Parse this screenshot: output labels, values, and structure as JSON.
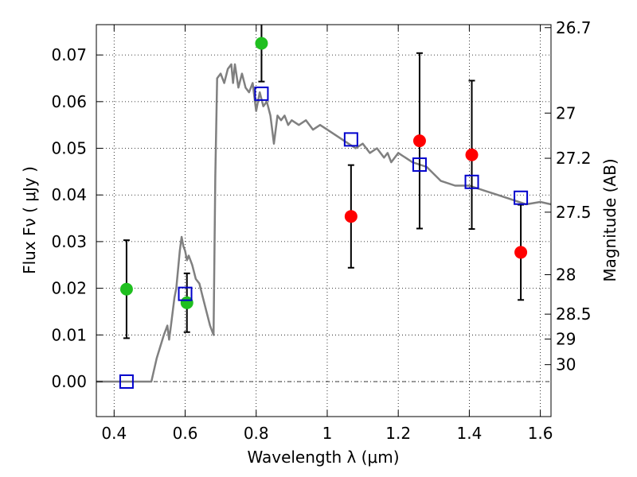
{
  "chart_data": {
    "type": "scatter",
    "xlabel": "Wavelength  λ (μm)",
    "ylabel": "Flux  Fν  ( μJy )",
    "ylabel_right": "Magnitude (AB)",
    "xlim": [
      0.35,
      1.63
    ],
    "ylim": [
      -0.0075,
      0.0765
    ],
    "x_ticks": [
      0.4,
      0.6,
      0.8,
      1.0,
      1.2,
      1.4,
      1.6
    ],
    "x_tick_labels": [
      "0.4",
      "0.6",
      "0.8",
      "1",
      "1.2",
      "1.4",
      "1.6"
    ],
    "y_ticks": [
      0.0,
      0.01,
      0.02,
      0.03,
      0.04,
      0.05,
      0.06,
      0.07
    ],
    "y_tick_labels": [
      "0.00",
      "0.01",
      "0.02",
      "0.03",
      "0.04",
      "0.05",
      "0.06",
      "0.07"
    ],
    "right_ticks": [
      {
        "label": "26.7",
        "mag": 26.7
      },
      {
        "label": "27",
        "mag": 27.0
      },
      {
        "label": "27.2",
        "mag": 27.2
      },
      {
        "label": "27.5",
        "mag": 27.5
      },
      {
        "label": "28",
        "mag": 28.0
      },
      {
        "label": "28.5",
        "mag": 28.5
      },
      {
        "label": "29",
        "mag": 29.0
      },
      {
        "label": "30",
        "mag": 30.0
      }
    ],
    "grid": true,
    "zero_line": true,
    "colors": {
      "template": "#808080",
      "detection_green": "#1fbf1f",
      "detection_red": "#ff0000",
      "model_box": "#0000cc",
      "errorbar": "#000000"
    },
    "model_template": {
      "x": [
        0.35,
        0.505,
        0.52,
        0.54,
        0.55,
        0.555,
        0.56,
        0.57,
        0.575,
        0.58,
        0.585,
        0.59,
        0.595,
        0.6,
        0.605,
        0.61,
        0.62,
        0.63,
        0.64,
        0.65,
        0.66,
        0.67,
        0.68,
        0.685,
        0.69,
        0.7,
        0.71,
        0.72,
        0.73,
        0.735,
        0.74,
        0.75,
        0.76,
        0.77,
        0.78,
        0.79,
        0.8,
        0.81,
        0.82,
        0.83,
        0.84,
        0.85,
        0.86,
        0.87,
        0.88,
        0.89,
        0.9,
        0.92,
        0.94,
        0.96,
        0.98,
        1.0,
        1.02,
        1.04,
        1.06,
        1.08,
        1.1,
        1.12,
        1.14,
        1.16,
        1.17,
        1.18,
        1.2,
        1.24,
        1.28,
        1.32,
        1.36,
        1.4,
        1.44,
        1.48,
        1.52,
        1.56,
        1.6,
        1.63
      ],
      "y": [
        0.0,
        0.0,
        0.005,
        0.01,
        0.012,
        0.009,
        0.012,
        0.018,
        0.02,
        0.024,
        0.028,
        0.031,
        0.029,
        0.028,
        0.026,
        0.027,
        0.025,
        0.022,
        0.021,
        0.018,
        0.015,
        0.012,
        0.01,
        0.044,
        0.065,
        0.066,
        0.064,
        0.067,
        0.068,
        0.064,
        0.068,
        0.063,
        0.066,
        0.063,
        0.062,
        0.064,
        0.058,
        0.062,
        0.059,
        0.06,
        0.057,
        0.051,
        0.057,
        0.056,
        0.057,
        0.055,
        0.056,
        0.055,
        0.056,
        0.054,
        0.055,
        0.054,
        0.053,
        0.052,
        0.051,
        0.05,
        0.051,
        0.049,
        0.05,
        0.048,
        0.049,
        0.047,
        0.049,
        0.047,
        0.046,
        0.043,
        0.042,
        0.042,
        0.041,
        0.04,
        0.039,
        0.038,
        0.0385,
        0.038
      ]
    },
    "green_points": [
      {
        "x": 0.435,
        "y": 0.0198,
        "err": 0.0105
      },
      {
        "x": 0.605,
        "y": 0.0169,
        "err": 0.0063
      },
      {
        "x": 0.815,
        "y": 0.0725,
        "err": 0.0082
      }
    ],
    "red_points": [
      {
        "x": 1.067,
        "y": 0.0354,
        "err": 0.011
      },
      {
        "x": 1.26,
        "y": 0.0516,
        "err": 0.0188
      },
      {
        "x": 1.407,
        "y": 0.0486,
        "err": 0.0159
      },
      {
        "x": 1.545,
        "y": 0.0277,
        "err": 0.0102
      }
    ],
    "model_points": [
      {
        "x": 0.435,
        "y": 0.0
      },
      {
        "x": 0.6,
        "y": 0.0188
      },
      {
        "x": 0.815,
        "y": 0.0617
      },
      {
        "x": 1.067,
        "y": 0.0519
      },
      {
        "x": 1.26,
        "y": 0.0465
      },
      {
        "x": 1.407,
        "y": 0.0428
      },
      {
        "x": 1.545,
        "y": 0.0394
      }
    ]
  }
}
